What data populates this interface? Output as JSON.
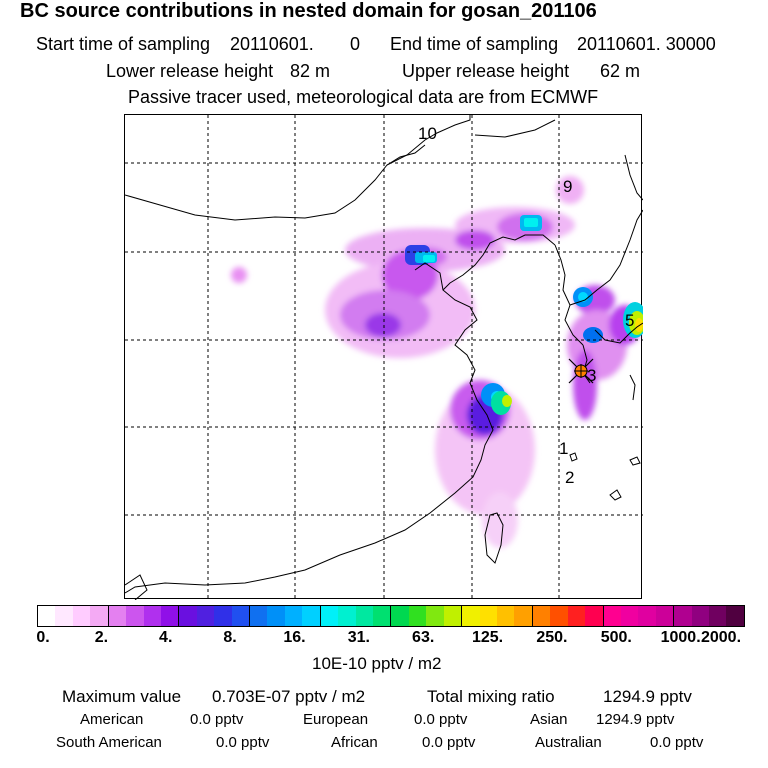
{
  "header": {
    "title": "BC  source contributions in nested domain for gosan_201106",
    "start_label": "Start time of sampling",
    "start_value": "20110601.",
    "start_hour": "0",
    "end_label": "End time of sampling",
    "end_value": "20110601. 30000",
    "lower_label": "Lower release height",
    "lower_value": "82 m",
    "upper_label": "Upper release height",
    "upper_value": "62 m",
    "note": "Passive tracer used, meteorological data are from ECMWF"
  },
  "map": {
    "trajectory_labels": [
      "10",
      "9",
      "5",
      "3",
      "1",
      "2"
    ],
    "receptor": "gosan"
  },
  "colorbar": {
    "colors": [
      "#ffffff",
      "#ffe8ff",
      "#ffccff",
      "#f4aaf4",
      "#e480f0",
      "#cc55ee",
      "#b030ee",
      "#9010e8",
      "#6a10e0",
      "#5020e0",
      "#3030e8",
      "#2050f0",
      "#1070f0",
      "#0090f8",
      "#00b0ff",
      "#00d0ff",
      "#00f0f8",
      "#00f0d0",
      "#00e8a0",
      "#00e070",
      "#00d850",
      "#30e020",
      "#80e810",
      "#c0f000",
      "#f0f000",
      "#ffe000",
      "#ffc000",
      "#ffa000",
      "#ff8000",
      "#ff5000",
      "#ff2020",
      "#ff0050",
      "#ff0090",
      "#f000a0",
      "#e000a0",
      "#cc0099",
      "#b00090",
      "#900080",
      "#700060",
      "#500040"
    ],
    "tick_labels": [
      "0.",
      "2.",
      "4.",
      "8.",
      "16.",
      "31.",
      "63.",
      "125.",
      "250.",
      "500.",
      "1000.",
      "2000."
    ],
    "units": "10E-10 pptv / m2"
  },
  "stats": {
    "max_label": "Maximum value",
    "max_value": "0.703E-07 pptv / m2",
    "total_label": "Total mixing ratio",
    "total_value": "1294.9 pptv",
    "regions": [
      {
        "name": "American",
        "value": "0.0 pptv"
      },
      {
        "name": "European",
        "value": "0.0 pptv"
      },
      {
        "name": "Asian",
        "value": "1294.9 pptv"
      },
      {
        "name": "South American",
        "value": "0.0 pptv"
      },
      {
        "name": "African",
        "value": "0.0 pptv"
      },
      {
        "name": "Australian",
        "value": "0.0 pptv"
      }
    ]
  }
}
